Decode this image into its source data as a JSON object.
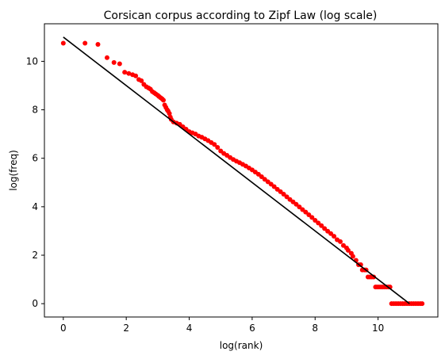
{
  "chart_data": {
    "type": "scatter",
    "title": "Corsican corpus according to Zipf Law (log scale)",
    "xlabel": "log(rank)",
    "ylabel": "log(freq)",
    "xlim": [
      -0.6,
      11.9
    ],
    "ylim": [
      -0.55,
      11.55
    ],
    "xticks": [
      0,
      2,
      4,
      6,
      8,
      10
    ],
    "yticks": [
      0,
      2,
      4,
      6,
      8,
      10
    ],
    "grid": false,
    "colors": {
      "points": "#ff0000",
      "fit_line": "#000000"
    },
    "series": [
      {
        "type": "scatter",
        "points": [
          [
            0.0,
            10.75
          ],
          [
            0.69,
            10.75
          ],
          [
            1.1,
            10.7
          ],
          [
            1.39,
            10.15
          ],
          [
            1.61,
            9.95
          ],
          [
            1.79,
            9.9
          ],
          [
            1.95,
            9.55
          ],
          [
            2.08,
            9.5
          ],
          [
            2.2,
            9.45
          ],
          [
            2.3,
            9.4
          ],
          [
            2.4,
            9.25
          ],
          [
            2.48,
            9.2
          ],
          [
            2.56,
            9.05
          ],
          [
            2.64,
            8.95
          ],
          [
            2.71,
            8.9
          ],
          [
            2.77,
            8.85
          ],
          [
            2.83,
            8.75
          ],
          [
            2.89,
            8.7
          ],
          [
            2.94,
            8.65
          ],
          [
            3.0,
            8.6
          ],
          [
            3.04,
            8.55
          ],
          [
            3.09,
            8.5
          ],
          [
            3.14,
            8.45
          ],
          [
            3.18,
            8.4
          ],
          [
            3.22,
            8.2
          ],
          [
            3.26,
            8.1
          ],
          [
            3.3,
            8.0
          ],
          [
            3.33,
            7.95
          ],
          [
            3.37,
            7.85
          ],
          [
            3.4,
            7.7
          ],
          [
            3.43,
            7.6
          ],
          [
            3.5,
            7.5
          ],
          [
            3.6,
            7.45
          ],
          [
            3.7,
            7.4
          ],
          [
            3.8,
            7.3
          ],
          [
            3.9,
            7.2
          ],
          [
            4.0,
            7.1
          ],
          [
            4.1,
            7.05
          ],
          [
            4.2,
            7.0
          ],
          [
            4.3,
            6.92
          ],
          [
            4.4,
            6.87
          ],
          [
            4.5,
            6.8
          ],
          [
            4.6,
            6.73
          ],
          [
            4.7,
            6.65
          ],
          [
            4.8,
            6.57
          ],
          [
            4.9,
            6.45
          ],
          [
            5.0,
            6.3
          ],
          [
            5.1,
            6.2
          ],
          [
            5.2,
            6.12
          ],
          [
            5.3,
            6.03
          ],
          [
            5.4,
            5.95
          ],
          [
            5.5,
            5.88
          ],
          [
            5.6,
            5.82
          ],
          [
            5.7,
            5.75
          ],
          [
            5.8,
            5.68
          ],
          [
            5.9,
            5.6
          ],
          [
            6.0,
            5.52
          ],
          [
            6.1,
            5.43
          ],
          [
            6.2,
            5.34
          ],
          [
            6.3,
            5.24
          ],
          [
            6.4,
            5.13
          ],
          [
            6.5,
            5.03
          ],
          [
            6.6,
            4.93
          ],
          [
            6.7,
            4.83
          ],
          [
            6.8,
            4.72
          ],
          [
            6.9,
            4.62
          ],
          [
            7.0,
            4.52
          ],
          [
            7.1,
            4.41
          ],
          [
            7.2,
            4.3
          ],
          [
            7.3,
            4.2
          ],
          [
            7.4,
            4.1
          ],
          [
            7.5,
            3.99
          ],
          [
            7.6,
            3.88
          ],
          [
            7.7,
            3.78
          ],
          [
            7.8,
            3.67
          ],
          [
            7.9,
            3.56
          ],
          [
            8.0,
            3.44
          ],
          [
            8.1,
            3.33
          ],
          [
            8.2,
            3.22
          ],
          [
            8.3,
            3.1
          ],
          [
            8.4,
            2.99
          ],
          [
            8.5,
            2.89
          ],
          [
            8.6,
            2.78
          ],
          [
            8.7,
            2.64
          ],
          [
            8.8,
            2.56
          ],
          [
            8.9,
            2.4
          ],
          [
            9.0,
            2.3
          ],
          [
            9.05,
            2.2
          ],
          [
            9.15,
            2.08
          ],
          [
            9.2,
            1.95
          ],
          [
            9.3,
            1.79
          ],
          [
            9.38,
            1.61
          ],
          [
            9.45,
            1.61
          ],
          [
            9.5,
            1.39
          ],
          [
            9.57,
            1.39
          ],
          [
            9.62,
            1.39
          ],
          [
            9.68,
            1.1
          ],
          [
            9.74,
            1.1
          ],
          [
            9.8,
            1.1
          ],
          [
            9.86,
            1.1
          ],
          [
            9.92,
            0.69
          ],
          [
            9.97,
            0.69
          ],
          [
            10.03,
            0.69
          ],
          [
            10.09,
            0.69
          ],
          [
            10.15,
            0.69
          ],
          [
            10.21,
            0.69
          ],
          [
            10.27,
            0.69
          ],
          [
            10.33,
            0.69
          ],
          [
            10.38,
            0.69
          ],
          [
            10.43,
            0.0
          ],
          [
            10.5,
            0.0
          ],
          [
            10.57,
            0.0
          ],
          [
            10.64,
            0.0
          ],
          [
            10.71,
            0.0
          ],
          [
            10.78,
            0.0
          ],
          [
            10.85,
            0.0
          ],
          [
            10.92,
            0.0
          ],
          [
            10.99,
            0.0
          ],
          [
            11.06,
            0.0
          ],
          [
            11.13,
            0.0
          ],
          [
            11.2,
            0.0
          ],
          [
            11.27,
            0.0
          ],
          [
            11.34,
            0.0
          ],
          [
            11.4,
            0.0
          ]
        ]
      },
      {
        "type": "line",
        "points": [
          [
            0.0,
            11.0
          ],
          [
            11.0,
            0.0
          ]
        ]
      }
    ]
  }
}
